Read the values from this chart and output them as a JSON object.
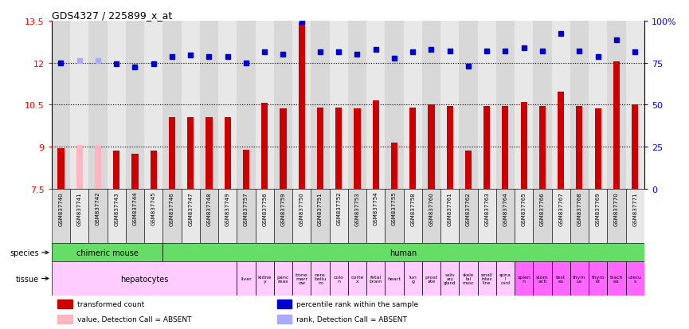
{
  "title": "GDS4327 / 225899_x_at",
  "samples": [
    "GSM837740",
    "GSM837741",
    "GSM837742",
    "GSM837743",
    "GSM837744",
    "GSM837745",
    "GSM837746",
    "GSM837747",
    "GSM837748",
    "GSM837749",
    "GSM837757",
    "GSM837756",
    "GSM837759",
    "GSM837750",
    "GSM837751",
    "GSM837752",
    "GSM837753",
    "GSM837754",
    "GSM837755",
    "GSM837758",
    "GSM837760",
    "GSM837761",
    "GSM837762",
    "GSM837763",
    "GSM837764",
    "GSM837765",
    "GSM837766",
    "GSM837767",
    "GSM837768",
    "GSM837769",
    "GSM837770",
    "GSM837771"
  ],
  "bar_values": [
    8.95,
    9.05,
    9.05,
    8.85,
    8.75,
    8.85,
    10.05,
    10.05,
    10.05,
    10.05,
    8.88,
    10.55,
    10.35,
    13.45,
    10.4,
    10.4,
    10.35,
    10.65,
    9.15,
    10.4,
    10.5,
    10.45,
    8.85,
    10.45,
    10.45,
    10.6,
    10.45,
    10.95,
    10.45,
    10.35,
    12.05,
    10.5
  ],
  "bar_absent": [
    false,
    true,
    true,
    false,
    false,
    false,
    false,
    false,
    false,
    false,
    false,
    false,
    false,
    false,
    false,
    false,
    false,
    false,
    false,
    false,
    false,
    false,
    false,
    false,
    false,
    false,
    false,
    false,
    false,
    false,
    false,
    false
  ],
  "dot_values": [
    12.0,
    12.08,
    12.08,
    11.95,
    11.85,
    11.95,
    12.22,
    12.28,
    12.22,
    12.22,
    12.0,
    12.38,
    12.3,
    13.48,
    12.38,
    12.38,
    12.3,
    12.48,
    12.15,
    12.38,
    12.48,
    12.42,
    11.88,
    12.42,
    12.42,
    12.52,
    12.42,
    13.05,
    12.42,
    12.22,
    12.82,
    12.38
  ],
  "dot_absent": [
    false,
    true,
    true,
    false,
    false,
    false,
    false,
    false,
    false,
    false,
    false,
    false,
    false,
    false,
    false,
    false,
    false,
    false,
    false,
    false,
    false,
    false,
    false,
    false,
    false,
    false,
    false,
    false,
    false,
    false,
    false,
    false
  ],
  "ylim": [
    7.5,
    13.5
  ],
  "yticks": [
    7.5,
    9.0,
    10.5,
    12.0,
    13.5
  ],
  "ytick_labels": [
    "7.5",
    "9",
    "10.5",
    "12",
    "13.5"
  ],
  "dotted_lines": [
    9.0,
    10.5,
    12.0
  ],
  "right_yticks_pct": [
    0,
    25,
    50,
    75,
    100
  ],
  "right_ytick_labels": [
    "0",
    "25",
    "50",
    "75",
    "100%"
  ],
  "bar_color": "#cc0000",
  "bar_absent_color": "#ffb6c1",
  "dot_color": "#0000cc",
  "dot_absent_color": "#aaaaff",
  "col_bg_even": "#d8d8d8",
  "col_bg_odd": "#e8e8e8",
  "species_blocks": [
    {
      "label": "chimeric mouse",
      "start": 0,
      "end": 6,
      "color": "#66dd66"
    },
    {
      "label": "human",
      "start": 6,
      "end": 32,
      "color": "#66dd66"
    }
  ],
  "tissue_blocks": [
    {
      "label": "hepatocytes",
      "start": 0,
      "end": 10,
      "color": "#ffccff",
      "fs": 7
    },
    {
      "label": "liver",
      "start": 10,
      "end": 11,
      "color": "#ffccff",
      "fs": 4.5
    },
    {
      "label": "kidne\ny",
      "start": 11,
      "end": 12,
      "color": "#ffccff",
      "fs": 4.5
    },
    {
      "label": "panc\nreas",
      "start": 12,
      "end": 13,
      "color": "#ffccff",
      "fs": 4.5
    },
    {
      "label": "bone\nmarr\now",
      "start": 13,
      "end": 14,
      "color": "#ffccff",
      "fs": 4.5
    },
    {
      "label": "cere\nbellu\nm",
      "start": 14,
      "end": 15,
      "color": "#ffccff",
      "fs": 4.5
    },
    {
      "label": "colo\nn",
      "start": 15,
      "end": 16,
      "color": "#ffccff",
      "fs": 4.5
    },
    {
      "label": "corte\nx",
      "start": 16,
      "end": 17,
      "color": "#ffccff",
      "fs": 4.5
    },
    {
      "label": "fetal\nbrain",
      "start": 17,
      "end": 18,
      "color": "#ffccff",
      "fs": 4.5
    },
    {
      "label": "heart",
      "start": 18,
      "end": 19,
      "color": "#ffccff",
      "fs": 4.5
    },
    {
      "label": "lun\ng",
      "start": 19,
      "end": 20,
      "color": "#ffccff",
      "fs": 4.5
    },
    {
      "label": "prost\nate",
      "start": 20,
      "end": 21,
      "color": "#ffccff",
      "fs": 4.5
    },
    {
      "label": "saliv\nary\ngland",
      "start": 21,
      "end": 22,
      "color": "#ffccff",
      "fs": 4.0
    },
    {
      "label": "skele\ntal\nmusc",
      "start": 22,
      "end": 23,
      "color": "#ffccff",
      "fs": 4.0
    },
    {
      "label": "small\nintes\ntine",
      "start": 23,
      "end": 24,
      "color": "#ffccff",
      "fs": 4.0
    },
    {
      "label": "spina\nl\ncord",
      "start": 24,
      "end": 25,
      "color": "#ffccff",
      "fs": 4.0
    },
    {
      "label": "splen\nn",
      "start": 25,
      "end": 26,
      "color": "#ff66ff",
      "fs": 4.5
    },
    {
      "label": "stom\nach",
      "start": 26,
      "end": 27,
      "color": "#ff66ff",
      "fs": 4.5
    },
    {
      "label": "test\nes",
      "start": 27,
      "end": 28,
      "color": "#ff66ff",
      "fs": 4.5
    },
    {
      "label": "thym\nus",
      "start": 28,
      "end": 29,
      "color": "#ff66ff",
      "fs": 4.5
    },
    {
      "label": "thyro\nid",
      "start": 29,
      "end": 30,
      "color": "#ff66ff",
      "fs": 4.5
    },
    {
      "label": "trach\nea",
      "start": 30,
      "end": 31,
      "color": "#ff66ff",
      "fs": 4.5
    },
    {
      "label": "uteru\ns",
      "start": 31,
      "end": 32,
      "color": "#ff66ff",
      "fs": 4.5
    }
  ],
  "legend_items": [
    {
      "label": "transformed count",
      "color": "#cc0000"
    },
    {
      "label": "percentile rank within the sample",
      "color": "#0000cc"
    },
    {
      "label": "value, Detection Call = ABSENT",
      "color": "#ffb6c1"
    },
    {
      "label": "rank, Detection Call = ABSENT",
      "color": "#aaaaff"
    }
  ]
}
